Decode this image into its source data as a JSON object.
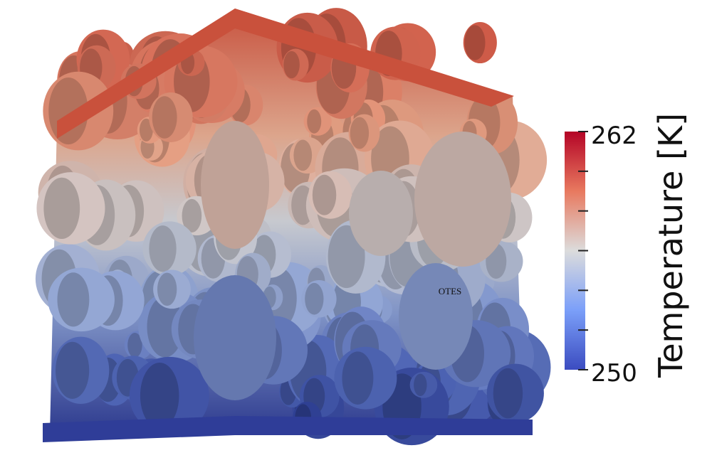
{
  "colorbar": {
    "title": "Temperature [K]",
    "max_label": "262",
    "min_label": "250"
  },
  "annotation": "OTES"
}
